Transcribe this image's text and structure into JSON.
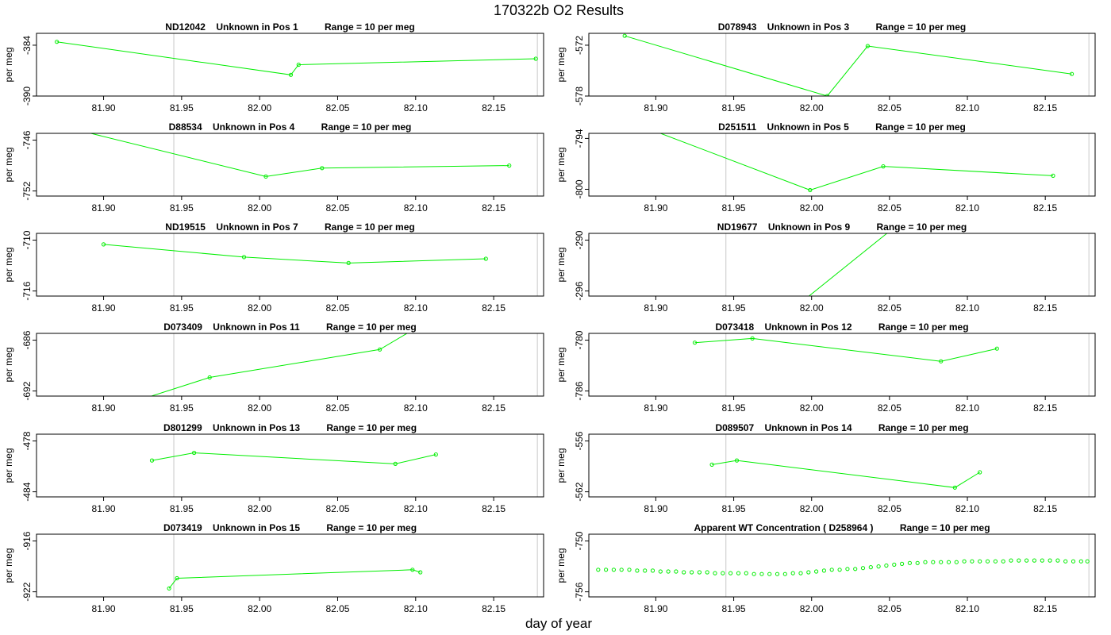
{
  "figure": {
    "title": "170322b  O2 Results",
    "xlabel": "day of year"
  },
  "chart_data": [
    {
      "type": "line",
      "title": "ND12042    Unknown in Pos 1          Range = 10 per meg",
      "ylabel": "per meg",
      "xlim": [
        81.857,
        82.182
      ],
      "ylim": [
        -390,
        -382.6
      ],
      "xticks": [
        81.9,
        81.95,
        82.0,
        82.05,
        82.1,
        82.15
      ],
      "yticks": [
        -390,
        -384
      ],
      "vlines": [
        81.945,
        82.178
      ],
      "series": [
        {
          "x": [
            81.87,
            82.02,
            82.025,
            82.177
          ],
          "y": [
            -383.6,
            -387.5,
            -386.3,
            -385.6
          ]
        }
      ]
    },
    {
      "type": "line",
      "title": "D078943    Unknown in Pos 3          Range = 10 per meg",
      "ylabel": "per meg",
      "xlim": [
        81.857,
        82.182
      ],
      "ylim": [
        -578,
        -570.6
      ],
      "xticks": [
        81.9,
        81.95,
        82.0,
        82.05,
        82.1,
        82.15
      ],
      "yticks": [
        -578,
        -572
      ],
      "vlines": [
        81.945,
        82.178
      ],
      "series": [
        {
          "x": [
            81.88,
            82.01,
            82.036,
            82.167
          ],
          "y": [
            -570.9,
            -578.0,
            -572.1,
            -575.4
          ]
        }
      ]
    },
    {
      "type": "line",
      "title": "D88534    Unknown in Pos 4          Range = 10 per meg",
      "ylabel": "per meg",
      "xlim": [
        81.857,
        82.182
      ],
      "ylim": [
        -752.6,
        -745.2
      ],
      "xticks": [
        81.9,
        81.95,
        82.0,
        82.05,
        82.1,
        82.15
      ],
      "yticks": [
        -752,
        -746
      ],
      "vlines": [
        81.945,
        82.178
      ],
      "series": [
        {
          "x": [
            81.883,
            82.004,
            82.04,
            82.16
          ],
          "y": [
            -744.8,
            -750.3,
            -749.3,
            -749.0
          ]
        }
      ]
    },
    {
      "type": "line",
      "title": "D251511    Unknown in Pos 5          Range = 10 per meg",
      "ylabel": "per meg",
      "xlim": [
        81.857,
        82.182
      ],
      "ylim": [
        -800.8,
        -793.4
      ],
      "xticks": [
        81.9,
        81.95,
        82.0,
        82.05,
        82.1,
        82.15
      ],
      "yticks": [
        -800,
        -794
      ],
      "vlines": [
        81.945,
        82.178
      ],
      "series": [
        {
          "x": [
            81.88,
            81.999,
            82.046,
            82.155
          ],
          "y": [
            -791.8,
            -800.1,
            -797.3,
            -798.4
          ]
        }
      ]
    },
    {
      "type": "line",
      "title": "ND19515    Unknown in Pos 7          Range = 10 per meg",
      "ylabel": "per meg",
      "xlim": [
        81.857,
        82.182
      ],
      "ylim": [
        -716.6,
        -709.2
      ],
      "xticks": [
        81.9,
        81.95,
        82.0,
        82.05,
        82.1,
        82.15
      ],
      "yticks": [
        -716,
        -710
      ],
      "vlines": [
        81.945,
        82.178
      ],
      "series": [
        {
          "x": [
            81.9,
            81.99,
            82.057,
            82.145
          ],
          "y": [
            -710.5,
            -712.0,
            -712.7,
            -712.2
          ]
        }
      ]
    },
    {
      "type": "line",
      "title": "ND19677    Unknown in Pos 9          Range = 10 per meg",
      "ylabel": "per meg",
      "xlim": [
        81.857,
        82.182
      ],
      "ylim": [
        -296.6,
        -289.2
      ],
      "xticks": [
        81.9,
        81.95,
        82.0,
        82.05,
        82.1,
        82.15
      ],
      "yticks": [
        -296,
        -290
      ],
      "vlines": [
        81.945,
        82.178
      ],
      "series": [
        {
          "x": [
            81.997,
            82.07
          ],
          "y": [
            -296.8,
            -286.0
          ]
        }
      ]
    },
    {
      "type": "line",
      "title": "D073409    Unknown in Pos 11          Range = 10 per meg",
      "ylabel": "per meg",
      "xlim": [
        81.857,
        82.182
      ],
      "ylim": [
        -692.6,
        -685.2
      ],
      "xticks": [
        81.9,
        81.95,
        82.0,
        82.05,
        82.1,
        82.15
      ],
      "yticks": [
        -692,
        -686
      ],
      "vlines": [
        81.945,
        82.178
      ],
      "series": [
        {
          "x": [
            81.89,
            81.968,
            82.077,
            82.11
          ],
          "y": [
            -695.0,
            -690.4,
            -687.1,
            -683.5
          ]
        }
      ]
    },
    {
      "type": "line",
      "title": "D073418    Unknown in Pos 12          Range = 10 per meg",
      "ylabel": "per meg",
      "xlim": [
        81.857,
        82.182
      ],
      "ylim": [
        -786.6,
        -779.2
      ],
      "xticks": [
        81.9,
        81.95,
        82.0,
        82.05,
        82.1,
        82.15
      ],
      "yticks": [
        -786,
        -780
      ],
      "vlines": [
        81.945,
        82.178
      ],
      "series": [
        {
          "x": [
            81.925,
            81.962,
            82.083,
            82.119
          ],
          "y": [
            -780.3,
            -779.8,
            -782.5,
            -781.0
          ]
        }
      ]
    },
    {
      "type": "line",
      "title": "D801299    Unknown in Pos 13          Range = 10 per meg",
      "ylabel": "per meg",
      "xlim": [
        81.857,
        82.182
      ],
      "ylim": [
        -484.6,
        -477.2
      ],
      "xticks": [
        81.9,
        81.95,
        82.0,
        82.05,
        82.1,
        82.15
      ],
      "yticks": [
        -484,
        -478
      ],
      "vlines": [
        81.945,
        82.178
      ],
      "series": [
        {
          "x": [
            81.931,
            81.958,
            82.087,
            82.113
          ],
          "y": [
            -480.3,
            -479.4,
            -480.7,
            -479.6
          ]
        }
      ]
    },
    {
      "type": "line",
      "title": "D089507    Unknown in Pos 14          Range = 10 per meg",
      "ylabel": "per meg",
      "xlim": [
        81.857,
        82.182
      ],
      "ylim": [
        -562.6,
        -555.2
      ],
      "xticks": [
        81.9,
        81.95,
        82.0,
        82.05,
        82.1,
        82.15
      ],
      "yticks": [
        -562,
        -556
      ],
      "vlines": [
        81.945,
        82.178
      ],
      "series": [
        {
          "x": [
            81.936,
            81.952,
            82.092,
            82.108
          ],
          "y": [
            -558.8,
            -558.3,
            -561.5,
            -559.7
          ]
        }
      ]
    },
    {
      "type": "line",
      "title": "D073419    Unknown in Pos 15          Range = 10 per meg",
      "ylabel": "per meg",
      "xlim": [
        81.857,
        82.182
      ],
      "ylim": [
        -922.6,
        -915.2
      ],
      "xticks": [
        81.9,
        81.95,
        82.0,
        82.05,
        82.1,
        82.15
      ],
      "yticks": [
        -922,
        -916
      ],
      "vlines": [
        81.945,
        82.178
      ],
      "series": [
        {
          "x": [
            81.942,
            81.947,
            82.098,
            82.103
          ],
          "y": [
            -921.6,
            -920.4,
            -919.4,
            -919.7
          ]
        }
      ]
    },
    {
      "type": "scatter",
      "title": "Apparent WT Concentration ( D258964 )          Range = 10 per meg",
      "ylabel": "per meg",
      "xlim": [
        81.857,
        82.182
      ],
      "ylim": [
        -756.6,
        -749.2
      ],
      "xticks": [
        81.9,
        81.95,
        82.0,
        82.05,
        82.1,
        82.15
      ],
      "yticks": [
        -756,
        -750
      ],
      "vlines": [
        81.945,
        82.178
      ],
      "series": [
        {
          "x": [
            81.863,
            81.868,
            81.873,
            81.878,
            81.883,
            81.888,
            81.893,
            81.898,
            81.903,
            81.908,
            81.913,
            81.918,
            81.923,
            81.928,
            81.933,
            81.938,
            81.943,
            81.948,
            81.953,
            81.958,
            81.963,
            81.968,
            81.973,
            81.978,
            81.983,
            81.988,
            81.993,
            81.998,
            82.003,
            82.008,
            82.013,
            82.018,
            82.023,
            82.028,
            82.033,
            82.038,
            82.043,
            82.048,
            82.053,
            82.058,
            82.063,
            82.068,
            82.073,
            82.078,
            82.083,
            82.088,
            82.093,
            82.098,
            82.103,
            82.108,
            82.113,
            82.118,
            82.123,
            82.128,
            82.133,
            82.138,
            82.143,
            82.148,
            82.153,
            82.158,
            82.163,
            82.168,
            82.173,
            82.177
          ],
          "y": [
            -753.4,
            -753.4,
            -753.4,
            -753.4,
            -753.4,
            -753.5,
            -753.5,
            -753.5,
            -753.6,
            -753.6,
            -753.6,
            -753.7,
            -753.7,
            -753.7,
            -753.7,
            -753.8,
            -753.8,
            -753.8,
            -753.8,
            -753.8,
            -753.9,
            -753.9,
            -753.9,
            -753.9,
            -753.9,
            -753.8,
            -753.8,
            -753.7,
            -753.6,
            -753.5,
            -753.4,
            -753.4,
            -753.3,
            -753.3,
            -753.2,
            -753.1,
            -753.0,
            -752.9,
            -752.8,
            -752.7,
            -752.6,
            -752.6,
            -752.5,
            -752.5,
            -752.5,
            -752.5,
            -752.5,
            -752.4,
            -752.4,
            -752.4,
            -752.4,
            -752.4,
            -752.4,
            -752.3,
            -752.3,
            -752.3,
            -752.3,
            -752.3,
            -752.3,
            -752.3,
            -752.4,
            -752.4,
            -752.4,
            -752.4
          ]
        }
      ]
    }
  ]
}
